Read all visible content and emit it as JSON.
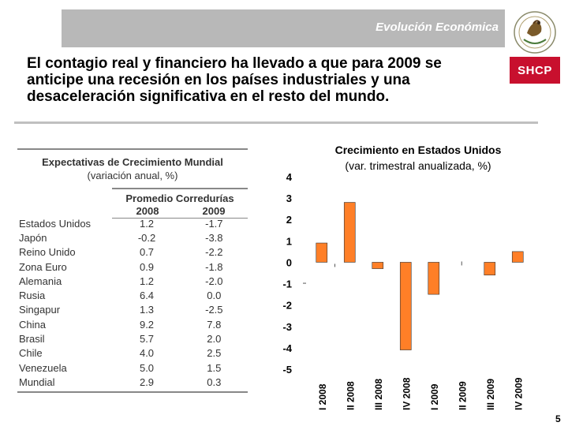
{
  "header": {
    "title": "Evolución Económica"
  },
  "logo": {
    "label": "SHCP",
    "emblem": "mexico-eagle-seal"
  },
  "headline": "El contagio real y financiero ha llevado a que para 2009 se anticipe una recesión en los países industriales y una desaceleración significativa en el resto del mundo.",
  "table": {
    "title": "Expectativas de Crecimiento Mundial",
    "subtitle": "(variación anual, %)",
    "group_header": "Promedio Corredurías",
    "years": [
      "2008",
      "2009"
    ],
    "rows": [
      {
        "country": "Estados Unidos",
        "y2008": "1.2",
        "y2009": "-1.7"
      },
      {
        "country": "Japón",
        "y2008": "-0.2",
        "y2009": "-3.8"
      },
      {
        "country": "Reino Unido",
        "y2008": "0.7",
        "y2009": "-2.2"
      },
      {
        "country": "Zona Euro",
        "y2008": "0.9",
        "y2009": "-1.8"
      },
      {
        "country": "Alemania",
        "y2008": "1.2",
        "y2009": "-2.0"
      },
      {
        "country": "Rusia",
        "y2008": "6.4",
        "y2009": "0.0"
      },
      {
        "country": "Singapur",
        "y2008": "1.3",
        "y2009": "-2.5"
      },
      {
        "country": "China",
        "y2008": "9.2",
        "y2009": "7.8"
      },
      {
        "country": "Brasil",
        "y2008": "5.7",
        "y2009": "2.0"
      },
      {
        "country": "Chile",
        "y2008": "4.0",
        "y2009": "2.5"
      },
      {
        "country": "Venezuela",
        "y2008": "5.0",
        "y2009": "1.5"
      },
      {
        "country": "Mundial",
        "y2008": "2.9",
        "y2009": "0.3"
      }
    ]
  },
  "chart_data": {
    "type": "bar",
    "title": "Crecimiento en Estados Unidos",
    "subtitle": "(var. trimestral anualizada, %)",
    "categories": [
      "I 2008",
      "II 2008",
      "III 2008",
      "IV 2008",
      "I 2009",
      "II 2009",
      "III 2009",
      "IV 2009"
    ],
    "values": [
      0.9,
      2.8,
      -0.3,
      -4.1,
      -1.5,
      0.0,
      -0.6,
      0.5
    ],
    "ylim": [
      -5,
      4
    ],
    "yticks": [
      4,
      3,
      2,
      1,
      0,
      -1,
      -2,
      -3,
      -4,
      -5
    ],
    "bar_color": "#ff7f27",
    "xlabel": "",
    "ylabel": ""
  },
  "page_number": "5"
}
